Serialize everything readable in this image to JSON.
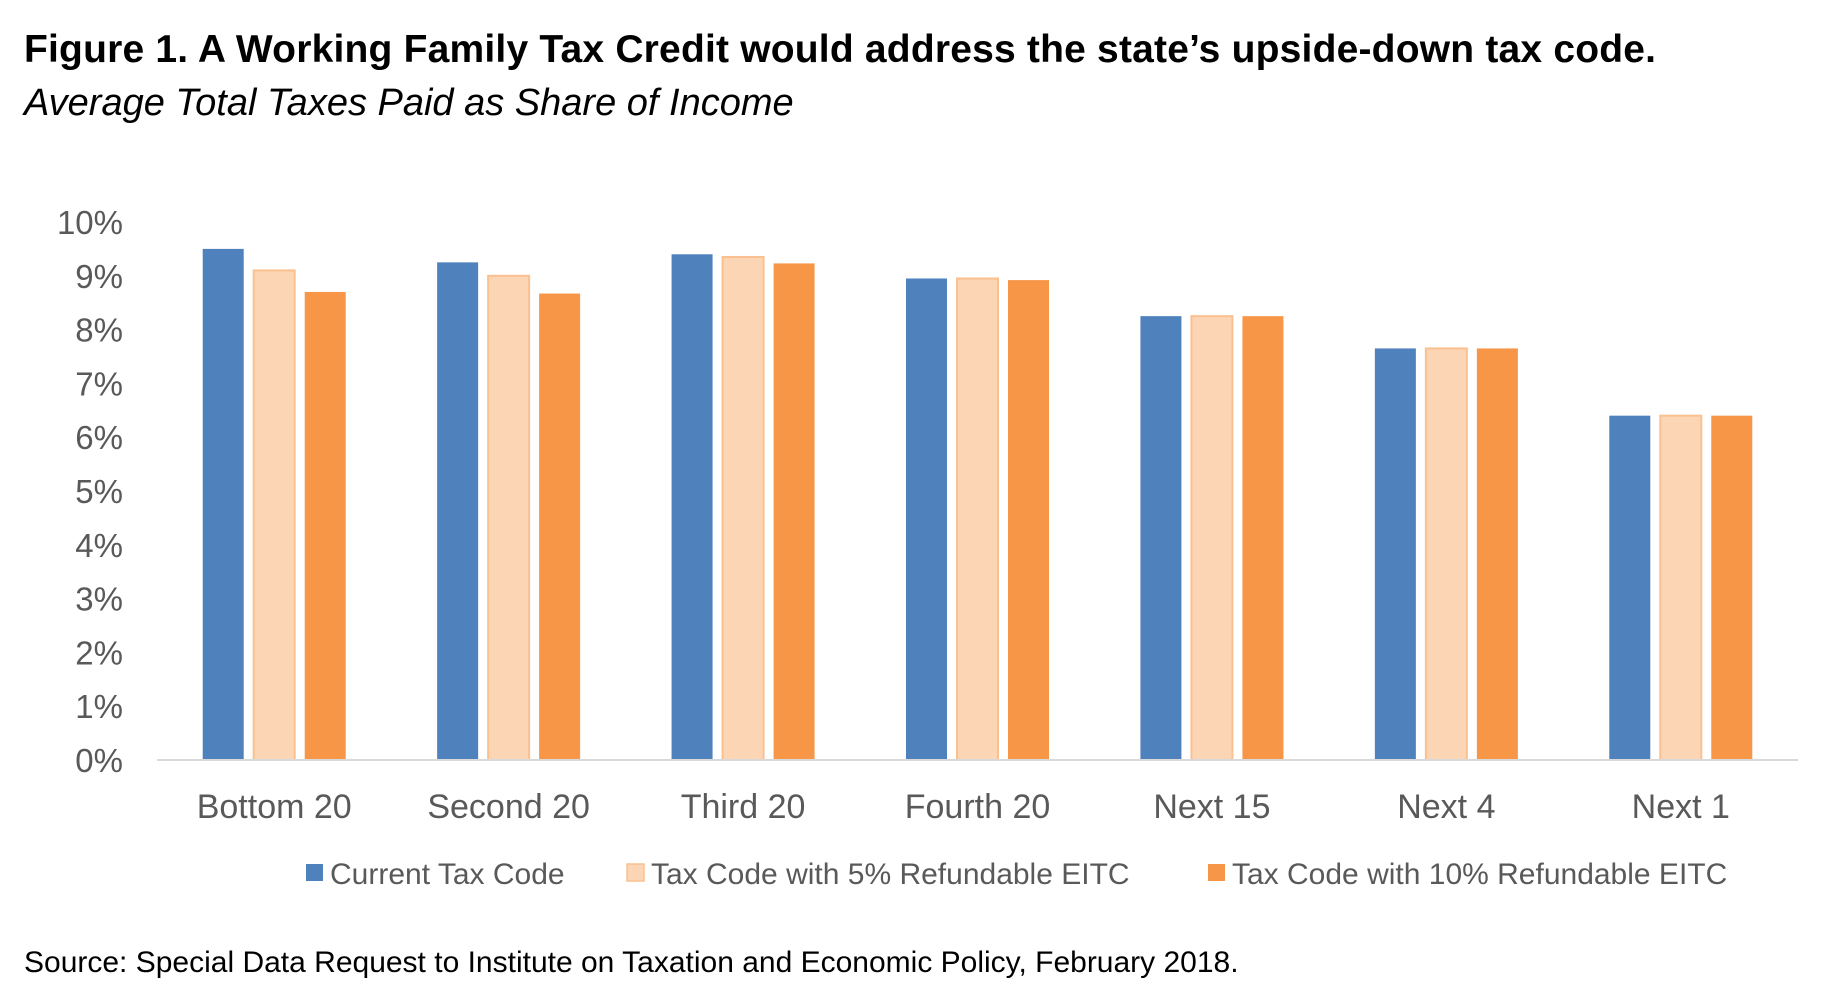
{
  "title": "Figure 1.  A Working Family Tax Credit would address the state’s upside-down tax code.",
  "subtitle": "Average Total Taxes Paid as Share of Income",
  "source": "Source: Special Data Request to Institute on Taxation and Economic Policy, February 2018.",
  "chart_data": {
    "type": "bar",
    "title": "Figure 1.  A Working Family Tax Credit would address the state’s upside-down tax code.",
    "subtitle": "Average Total Taxes Paid as Share of Income",
    "xlabel": "",
    "ylabel": "",
    "ylim": [
      0,
      10
    ],
    "yticks": [
      0,
      1,
      2,
      3,
      4,
      5,
      6,
      7,
      8,
      9,
      10
    ],
    "ytick_labels": [
      "0%",
      "1%",
      "2%",
      "3%",
      "4%",
      "5%",
      "6%",
      "7%",
      "8%",
      "9%",
      "10%"
    ],
    "grid": false,
    "legend_position": "bottom",
    "categories": [
      "Bottom 20",
      "Second 20",
      "Third 20",
      "Fourth 20",
      "Next 15",
      "Next 4",
      "Next 1"
    ],
    "series": [
      {
        "name": "Current Tax Code",
        "color": "#4f81bd",
        "values": [
          9.5,
          9.25,
          9.4,
          8.95,
          8.25,
          7.65,
          6.4
        ]
      },
      {
        "name": "Tax Code with 5% Refundable EITC",
        "color": "#fcd5b5",
        "values": [
          9.1,
          9.0,
          9.35,
          8.95,
          8.25,
          7.65,
          6.4
        ]
      },
      {
        "name": "Tax Code with 10% Refundable EITC",
        "color": "#f79646",
        "values": [
          8.7,
          8.67,
          9.23,
          8.92,
          8.25,
          7.65,
          6.4
        ]
      }
    ]
  }
}
